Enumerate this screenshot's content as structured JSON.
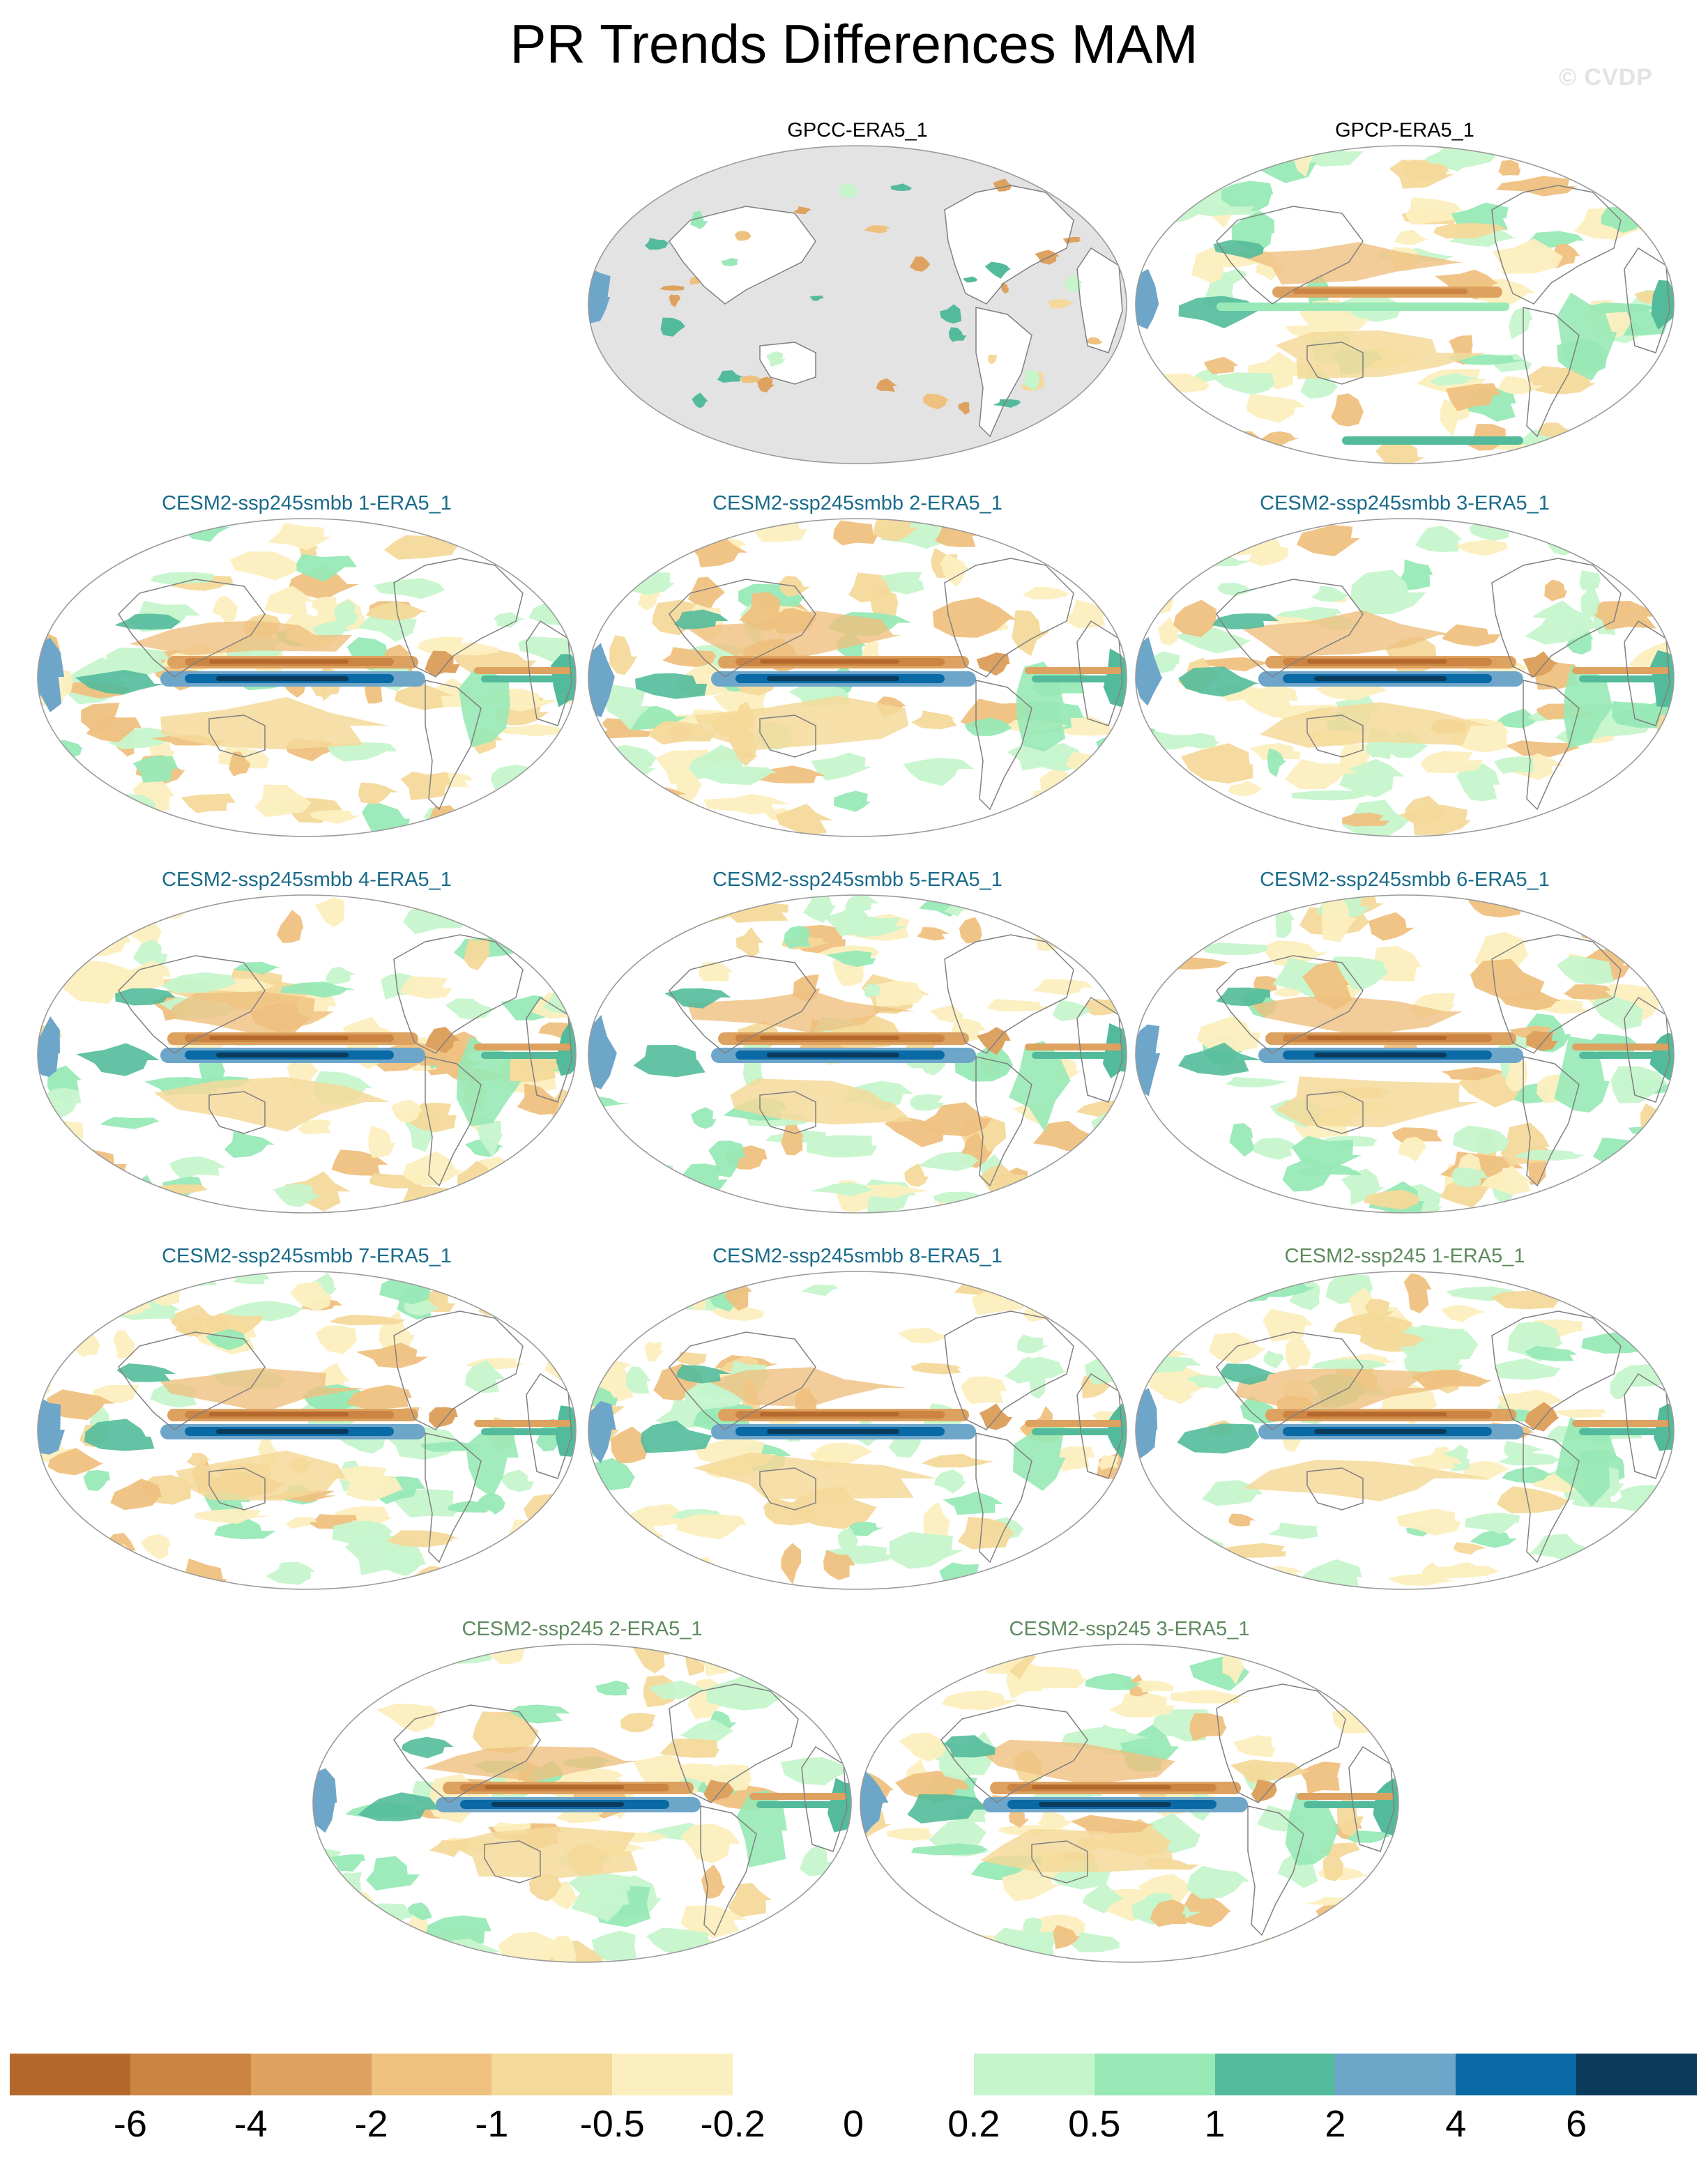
{
  "figure": {
    "title": "PR Trends Differences MAM",
    "watermark": "© CVDP"
  },
  "panels": [
    {
      "label": "GPCC-ERA5_1",
      "label_color": "#000000",
      "kind": "land_only"
    },
    {
      "label": "GPCP-ERA5_1",
      "label_color": "#000000",
      "kind": "obs"
    },
    {
      "label": "CESM2-ssp245smbb 1-ERA5_1",
      "label_color": "#1a6b8a",
      "kind": "model"
    },
    {
      "label": "CESM2-ssp245smbb 2-ERA5_1",
      "label_color": "#1a6b8a",
      "kind": "model"
    },
    {
      "label": "CESM2-ssp245smbb 3-ERA5_1",
      "label_color": "#1a6b8a",
      "kind": "model"
    },
    {
      "label": "CESM2-ssp245smbb 4-ERA5_1",
      "label_color": "#1a6b8a",
      "kind": "model"
    },
    {
      "label": "CESM2-ssp245smbb 5-ERA5_1",
      "label_color": "#1a6b8a",
      "kind": "model"
    },
    {
      "label": "CESM2-ssp245smbb 6-ERA5_1",
      "label_color": "#1a6b8a",
      "kind": "model"
    },
    {
      "label": "CESM2-ssp245smbb 7-ERA5_1",
      "label_color": "#1a6b8a",
      "kind": "model"
    },
    {
      "label": "CESM2-ssp245smbb 8-ERA5_1",
      "label_color": "#1a6b8a",
      "kind": "model"
    },
    {
      "label": "CESM2-ssp245 1-ERA5_1",
      "label_color": "#5e8a5e",
      "kind": "model"
    },
    {
      "label": "CESM2-ssp245 2-ERA5_1",
      "label_color": "#5e8a5e",
      "kind": "model"
    },
    {
      "label": "CESM2-ssp245 3-ERA5_1",
      "label_color": "#5e8a5e",
      "kind": "model"
    }
  ],
  "colorbar": {
    "ticks": [
      "-6",
      "-4",
      "-2",
      "-1",
      "-0.5",
      "-0.2",
      "0",
      "0.2",
      "0.5",
      "1",
      "2",
      "4",
      "6"
    ],
    "colors": [
      "#b5682c",
      "#cb8442",
      "#dea260",
      "#efc17f",
      "#f4d99a",
      "#fcefbf",
      "#ffffff",
      "#ffffff",
      "#c6f5cc",
      "#98e9b6",
      "#53bb9b",
      "#6ea6c9",
      "#0a6aa6",
      "#0a3b5c"
    ]
  },
  "map_colors": {
    "ocean_land_background": "#ffffff",
    "masked_ocean": "#e3e3e3",
    "coastline": "#808080"
  }
}
